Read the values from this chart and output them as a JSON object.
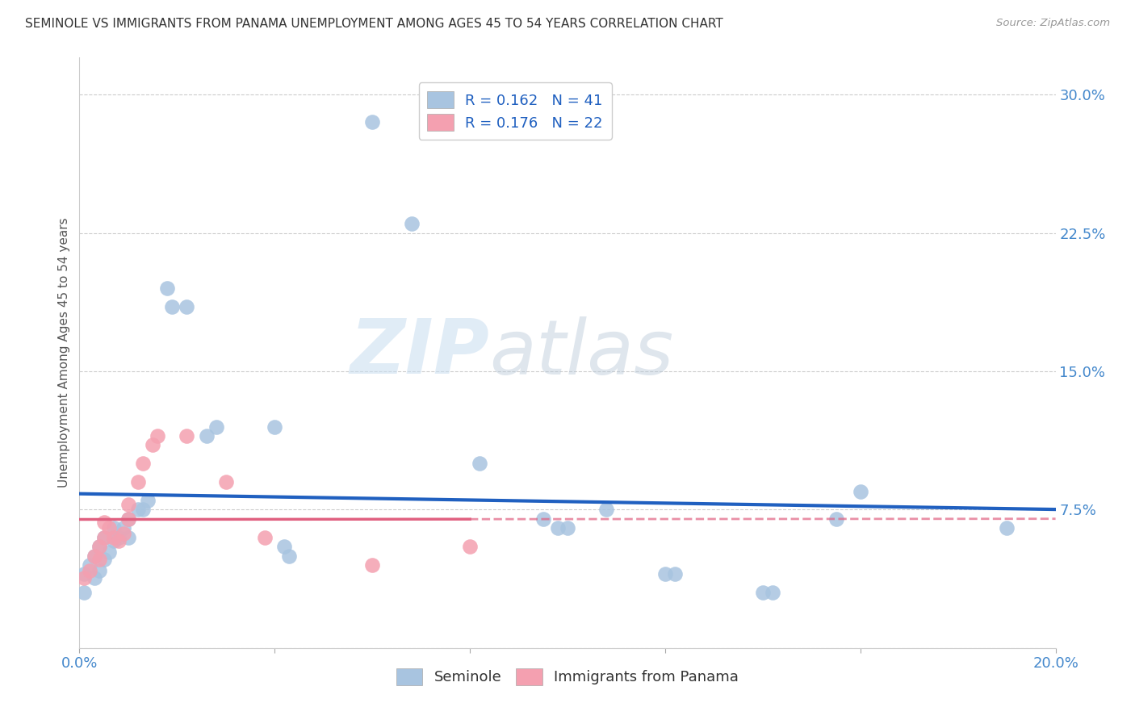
{
  "title": "SEMINOLE VS IMMIGRANTS FROM PANAMA UNEMPLOYMENT AMONG AGES 45 TO 54 YEARS CORRELATION CHART",
  "source": "Source: ZipAtlas.com",
  "ylabel": "Unemployment Among Ages 45 to 54 years",
  "xlim": [
    0.0,
    0.2
  ],
  "ylim": [
    0.0,
    0.32
  ],
  "xticks": [
    0.0,
    0.04,
    0.08,
    0.12,
    0.16,
    0.2
  ],
  "yticks": [
    0.0,
    0.075,
    0.15,
    0.225,
    0.3
  ],
  "seminole_color": "#a8c4e0",
  "panama_color": "#f4a0b0",
  "seminole_line_color": "#2060c0",
  "panama_line_color": "#e06080",
  "seminole_scatter": [
    [
      0.001,
      0.03
    ],
    [
      0.001,
      0.04
    ],
    [
      0.002,
      0.045
    ],
    [
      0.003,
      0.038
    ],
    [
      0.003,
      0.05
    ],
    [
      0.004,
      0.042
    ],
    [
      0.004,
      0.055
    ],
    [
      0.005,
      0.048
    ],
    [
      0.005,
      0.06
    ],
    [
      0.006,
      0.052
    ],
    [
      0.007,
      0.058
    ],
    [
      0.007,
      0.065
    ],
    [
      0.008,
      0.06
    ],
    [
      0.009,
      0.065
    ],
    [
      0.01,
      0.07
    ],
    [
      0.01,
      0.06
    ],
    [
      0.012,
      0.075
    ],
    [
      0.013,
      0.075
    ],
    [
      0.014,
      0.08
    ],
    [
      0.018,
      0.195
    ],
    [
      0.019,
      0.185
    ],
    [
      0.022,
      0.185
    ],
    [
      0.026,
      0.115
    ],
    [
      0.028,
      0.12
    ],
    [
      0.04,
      0.12
    ],
    [
      0.042,
      0.055
    ],
    [
      0.043,
      0.05
    ],
    [
      0.06,
      0.285
    ],
    [
      0.068,
      0.23
    ],
    [
      0.082,
      0.1
    ],
    [
      0.095,
      0.07
    ],
    [
      0.098,
      0.065
    ],
    [
      0.1,
      0.065
    ],
    [
      0.108,
      0.075
    ],
    [
      0.12,
      0.04
    ],
    [
      0.122,
      0.04
    ],
    [
      0.14,
      0.03
    ],
    [
      0.142,
      0.03
    ],
    [
      0.155,
      0.07
    ],
    [
      0.16,
      0.085
    ],
    [
      0.19,
      0.065
    ]
  ],
  "panama_scatter": [
    [
      0.001,
      0.038
    ],
    [
      0.002,
      0.042
    ],
    [
      0.003,
      0.05
    ],
    [
      0.004,
      0.048
    ],
    [
      0.004,
      0.055
    ],
    [
      0.005,
      0.06
    ],
    [
      0.005,
      0.068
    ],
    [
      0.006,
      0.065
    ],
    [
      0.007,
      0.06
    ],
    [
      0.008,
      0.058
    ],
    [
      0.009,
      0.062
    ],
    [
      0.01,
      0.07
    ],
    [
      0.01,
      0.078
    ],
    [
      0.012,
      0.09
    ],
    [
      0.013,
      0.1
    ],
    [
      0.015,
      0.11
    ],
    [
      0.016,
      0.115
    ],
    [
      0.022,
      0.115
    ],
    [
      0.03,
      0.09
    ],
    [
      0.038,
      0.06
    ],
    [
      0.06,
      0.045
    ],
    [
      0.08,
      0.055
    ]
  ],
  "watermark_zip": "ZIP",
  "watermark_atlas": "atlas",
  "background_color": "#ffffff",
  "grid_color": "#cccccc"
}
